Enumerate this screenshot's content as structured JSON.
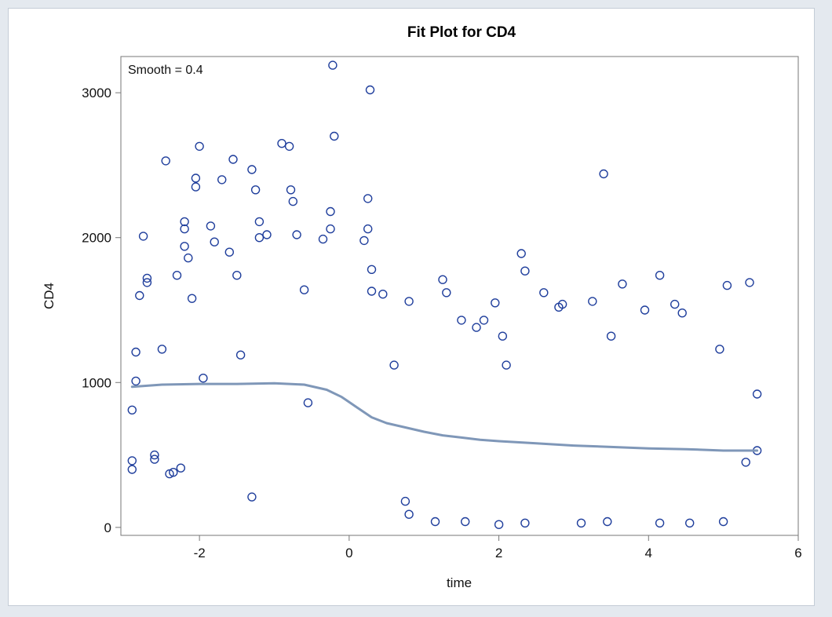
{
  "chart_data": {
    "type": "scatter",
    "title": "Fit Plot for CD4",
    "xlabel": "time",
    "ylabel": "CD4",
    "annotation": "Smooth = 0.4",
    "xlim": [
      -3.05,
      6.0
    ],
    "ylim": [
      -55,
      3250
    ],
    "xticks": [
      -2,
      0,
      2,
      4,
      6
    ],
    "yticks": [
      0,
      1000,
      2000,
      3000
    ],
    "x_tick_labels": [
      "-2",
      "0",
      "2",
      "4",
      "6"
    ],
    "y_tick_labels": [
      "0",
      "1000",
      "2000",
      "3000"
    ],
    "grid": false,
    "legend": "none",
    "colors": {
      "points": "#1f3e9c",
      "smooth_line": "#7f97b8",
      "axis": "#777777",
      "background": "#ffffff",
      "outer_background": "#e4e9ef"
    },
    "series": [
      {
        "kind": "scatter",
        "marker": "open-circle",
        "points": [
          [
            -2.9,
            460
          ],
          [
            -2.9,
            400
          ],
          [
            -2.9,
            810
          ],
          [
            -2.85,
            1210
          ],
          [
            -2.85,
            1010
          ],
          [
            -2.8,
            1600
          ],
          [
            -2.75,
            2010
          ],
          [
            -2.7,
            1720
          ],
          [
            -2.7,
            1690
          ],
          [
            -2.6,
            470
          ],
          [
            -2.6,
            500
          ],
          [
            -2.5,
            1230
          ],
          [
            -2.45,
            2530
          ],
          [
            -2.4,
            370
          ],
          [
            -2.3,
            1740
          ],
          [
            -2.2,
            2110
          ],
          [
            -2.2,
            2060
          ],
          [
            -2.2,
            1940
          ],
          [
            -2.15,
            1860
          ],
          [
            -2.1,
            1580
          ],
          [
            -2.05,
            2350
          ],
          [
            -2.05,
            2410
          ],
          [
            -2.0,
            2630
          ],
          [
            -1.95,
            1030
          ],
          [
            -1.85,
            2080
          ],
          [
            -1.8,
            1970
          ],
          [
            -1.7,
            2400
          ],
          [
            -1.6,
            1900
          ],
          [
            -1.55,
            2540
          ],
          [
            -1.5,
            1740
          ],
          [
            -1.45,
            1190
          ],
          [
            -1.3,
            2470
          ],
          [
            -1.25,
            2330
          ],
          [
            -1.2,
            2110
          ],
          [
            -1.2,
            2000
          ],
          [
            -1.1,
            2020
          ],
          [
            -0.9,
            2650
          ],
          [
            -0.8,
            2630
          ],
          [
            -0.78,
            2330
          ],
          [
            -0.75,
            2250
          ],
          [
            -0.7,
            2020
          ],
          [
            -0.6,
            1640
          ],
          [
            -0.55,
            860
          ],
          [
            -0.25,
            2180
          ],
          [
            -0.25,
            2060
          ],
          [
            -0.2,
            2700
          ],
          [
            -0.22,
            3190
          ],
          [
            -0.35,
            1990
          ],
          [
            0.2,
            1980
          ],
          [
            0.25,
            2270
          ],
          [
            0.25,
            2060
          ],
          [
            0.28,
            3020
          ],
          [
            0.3,
            1780
          ],
          [
            0.3,
            1630
          ],
          [
            0.45,
            1610
          ],
          [
            0.6,
            1120
          ],
          [
            0.8,
            1560
          ],
          [
            1.25,
            1710
          ],
          [
            1.3,
            1620
          ],
          [
            1.5,
            1430
          ],
          [
            1.7,
            1380
          ],
          [
            1.8,
            1430
          ],
          [
            1.95,
            1550
          ],
          [
            2.05,
            1320
          ],
          [
            2.1,
            1120
          ],
          [
            2.3,
            1890
          ],
          [
            2.35,
            1770
          ],
          [
            2.6,
            1620
          ],
          [
            2.8,
            1520
          ],
          [
            2.85,
            1540
          ],
          [
            3.25,
            1560
          ],
          [
            3.4,
            2440
          ],
          [
            3.5,
            1320
          ],
          [
            3.65,
            1680
          ],
          [
            3.95,
            1500
          ],
          [
            4.15,
            1740
          ],
          [
            4.35,
            1540
          ],
          [
            4.45,
            1480
          ],
          [
            4.95,
            1230
          ],
          [
            5.05,
            1670
          ],
          [
            5.35,
            1690
          ],
          [
            5.45,
            920
          ],
          [
            5.45,
            530
          ],
          [
            5.3,
            450
          ],
          [
            4.15,
            30
          ],
          [
            4.55,
            30
          ],
          [
            3.1,
            30
          ],
          [
            3.45,
            40
          ],
          [
            1.55,
            40
          ],
          [
            1.15,
            40
          ],
          [
            -1.3,
            210
          ],
          [
            0.75,
            180
          ],
          [
            0.8,
            90
          ],
          [
            2.0,
            20
          ],
          [
            2.35,
            30
          ],
          [
            5.0,
            40
          ],
          [
            -2.35,
            380
          ],
          [
            -2.25,
            410
          ]
        ]
      },
      {
        "kind": "smooth",
        "name": "",
        "points": [
          [
            -2.9,
            970
          ],
          [
            -2.5,
            985
          ],
          [
            -2.0,
            990
          ],
          [
            -1.5,
            990
          ],
          [
            -1.0,
            995
          ],
          [
            -0.6,
            985
          ],
          [
            -0.3,
            950
          ],
          [
            -0.1,
            900
          ],
          [
            0.1,
            830
          ],
          [
            0.3,
            760
          ],
          [
            0.5,
            720
          ],
          [
            0.75,
            690
          ],
          [
            1.0,
            660
          ],
          [
            1.25,
            635
          ],
          [
            1.5,
            620
          ],
          [
            1.75,
            605
          ],
          [
            2.0,
            595
          ],
          [
            2.5,
            580
          ],
          [
            3.0,
            565
          ],
          [
            3.5,
            555
          ],
          [
            4.0,
            545
          ],
          [
            4.5,
            540
          ],
          [
            5.0,
            530
          ],
          [
            5.45,
            530
          ]
        ]
      }
    ]
  }
}
